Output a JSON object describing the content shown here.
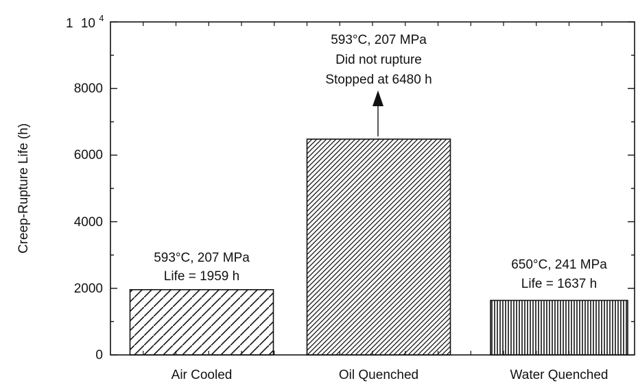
{
  "chart_data": {
    "type": "bar",
    "categories": [
      "Air Cooled",
      "Oil Quenched",
      "Water Quenched"
    ],
    "values": [
      1959,
      6480,
      1637
    ],
    "ylabel": "Creep-Rupture Life (h)",
    "xlabel": "",
    "ylim": [
      0,
      10000
    ],
    "y_ticks": [
      0,
      2000,
      4000,
      6000,
      8000
    ],
    "y_top_tick": {
      "mantissa": "1",
      "base": "10",
      "exponent": "4"
    },
    "grid": false,
    "legend": "none",
    "bar_patterns": [
      "diagonal-backslash-sparse",
      "diagonal-slash-dense",
      "vertical-dense"
    ],
    "annotations": [
      [
        "593°C, 207 MPa",
        "Life = 1959 h"
      ],
      [
        "593°C, 207 MPa",
        "Did not rupture",
        "Stopped at 6480 h"
      ],
      [
        "650°C, 241 MPa",
        "Life = 1637 h"
      ]
    ],
    "arrow_on": "Oil Quenched"
  }
}
